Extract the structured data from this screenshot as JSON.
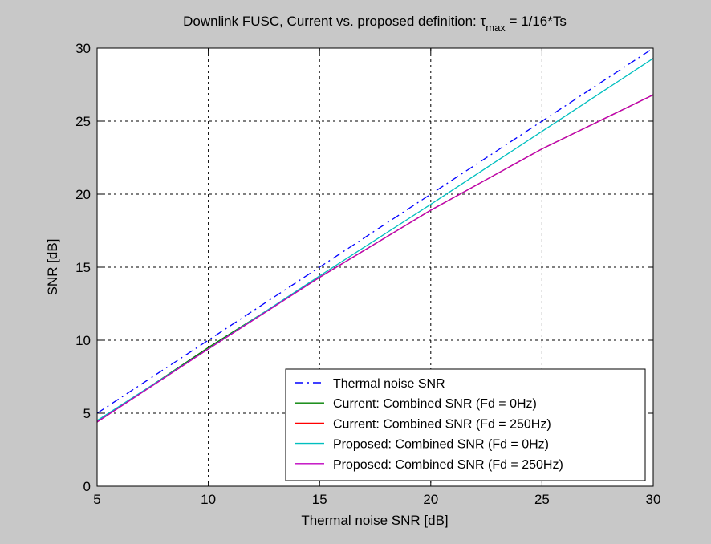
{
  "chart_data": {
    "type": "line",
    "title_main": "Downlink FUSC, Current vs. proposed definition: ",
    "title_symbol": "τ",
    "title_subscript": "max",
    "title_rest": " = 1/16*Ts",
    "xlabel": "Thermal noise SNR [dB]",
    "ylabel": "SNR [dB]",
    "xlim": [
      5,
      30
    ],
    "ylim": [
      0,
      30
    ],
    "xticks": [
      5,
      10,
      15,
      20,
      25,
      30
    ],
    "yticks": [
      0,
      5,
      10,
      15,
      20,
      25,
      30
    ],
    "xtick_labels": [
      "5",
      "10",
      "15",
      "20",
      "25",
      "30"
    ],
    "ytick_labels": [
      "0",
      "5",
      "10",
      "15",
      "20",
      "25",
      "30"
    ],
    "grid": true,
    "legend_position": "bottom-right",
    "x": [
      5,
      10,
      15,
      20,
      25,
      30
    ],
    "series": [
      {
        "name": "Thermal noise SNR",
        "color": "#0000ff",
        "dash": "dashdot",
        "values": [
          5,
          10,
          15,
          20,
          25,
          30
        ]
      },
      {
        "name": "Current: Combined SNR (Fd = 0Hz)",
        "color": "#008000",
        "dash": "solid",
        "values": [
          4.4,
          9.5,
          14.3,
          18.9,
          23.1,
          26.8
        ]
      },
      {
        "name": "Current: Combined SNR (Fd = 250Hz)",
        "color": "#ff0000",
        "dash": "solid",
        "values": [
          4.4,
          9.4,
          14.3,
          18.9,
          23.1,
          26.8
        ]
      },
      {
        "name": "Proposed: Combined SNR (Fd = 0Hz)",
        "color": "#00bfbf",
        "dash": "solid",
        "values": [
          4.5,
          9.4,
          14.4,
          19.3,
          24.3,
          29.3
        ]
      },
      {
        "name": "Proposed: Combined SNR (Fd = 250Hz)",
        "color": "#bf00bf",
        "dash": "solid",
        "values": [
          4.4,
          9.4,
          14.3,
          18.9,
          23.1,
          26.8
        ]
      }
    ]
  }
}
